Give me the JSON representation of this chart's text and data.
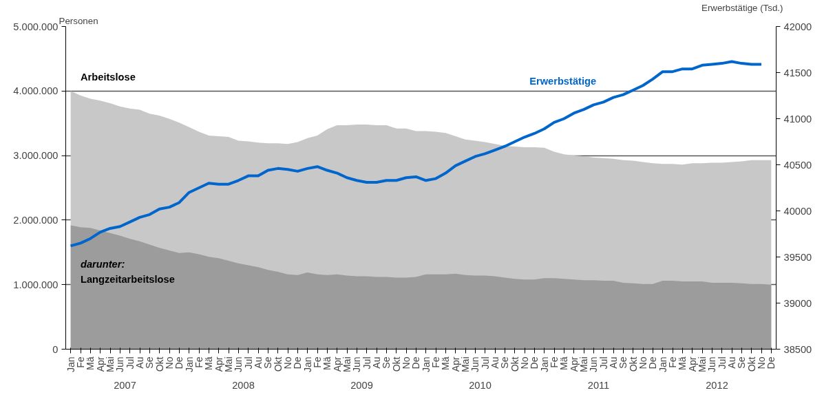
{
  "chart_data": {
    "type": "area",
    "categories": [
      "Jan",
      "Fe",
      "Mä",
      "Apr",
      "Mai",
      "Jun",
      "Jul",
      "Au",
      "Se",
      "Okt",
      "No",
      "De",
      "Jan",
      "Fe",
      "Mä",
      "Apr",
      "Mai",
      "Jun",
      "Jul",
      "Au",
      "Se",
      "Okt",
      "No",
      "De",
      "Jan",
      "Fe",
      "Mä",
      "Apr",
      "Mai",
      "Jun",
      "Jul",
      "Au",
      "Se",
      "Okt",
      "No",
      "De",
      "Jan",
      "Fe",
      "Mä",
      "Apr",
      "Mai",
      "Jun",
      "Jul",
      "Au",
      "Se",
      "Okt",
      "No",
      "De",
      "Jan",
      "Fe",
      "Mä",
      "Apr",
      "Mai",
      "Jun",
      "Jul",
      "Au",
      "Se",
      "Okt",
      "No",
      "De",
      "Jan",
      "Fe",
      "Mä",
      "Apr",
      "Mai",
      "Jun",
      "Jul",
      "Au",
      "Se",
      "Okt",
      "No",
      "De"
    ],
    "series": [
      {
        "name": "Arbeitslose",
        "color": "#c8c8c8",
        "values": [
          4000000,
          3930000,
          3880000,
          3850000,
          3810000,
          3760000,
          3730000,
          3710000,
          3650000,
          3620000,
          3570000,
          3510000,
          3440000,
          3370000,
          3310000,
          3300000,
          3290000,
          3230000,
          3220000,
          3200000,
          3190000,
          3190000,
          3180000,
          3210000,
          3270000,
          3310000,
          3410000,
          3470000,
          3470000,
          3480000,
          3480000,
          3470000,
          3470000,
          3420000,
          3420000,
          3380000,
          3380000,
          3370000,
          3350000,
          3300000,
          3250000,
          3230000,
          3210000,
          3180000,
          3150000,
          3140000,
          3130000,
          3130000,
          3120000,
          3060000,
          3020000,
          3000000,
          2990000,
          2970000,
          2960000,
          2950000,
          2930000,
          2920000,
          2900000,
          2880000,
          2870000,
          2870000,
          2860000,
          2880000,
          2880000,
          2890000,
          2890000,
          2900000,
          2910000,
          2930000,
          2930000,
          2930000
        ]
      },
      {
        "name": "Langzeitarbeitslose",
        "color": "#9c9c9c",
        "values": [
          1920000,
          1890000,
          1880000,
          1840000,
          1800000,
          1760000,
          1710000,
          1670000,
          1620000,
          1570000,
          1530000,
          1490000,
          1500000,
          1470000,
          1430000,
          1410000,
          1370000,
          1330000,
          1300000,
          1270000,
          1230000,
          1200000,
          1160000,
          1150000,
          1190000,
          1160000,
          1150000,
          1160000,
          1140000,
          1130000,
          1130000,
          1120000,
          1120000,
          1110000,
          1110000,
          1120000,
          1160000,
          1160000,
          1160000,
          1170000,
          1150000,
          1140000,
          1140000,
          1130000,
          1110000,
          1090000,
          1080000,
          1080000,
          1100000,
          1100000,
          1090000,
          1080000,
          1070000,
          1070000,
          1060000,
          1060000,
          1030000,
          1020000,
          1010000,
          1010000,
          1060000,
          1060000,
          1050000,
          1050000,
          1050000,
          1030000,
          1030000,
          1030000,
          1020000,
          1010000,
          1010000,
          1000000
        ]
      },
      {
        "name": "Erwerbstätige",
        "type": "line",
        "axis": "y2",
        "color": "#0066cc",
        "values": [
          39620,
          39650,
          39700,
          39770,
          39810,
          39830,
          39880,
          39930,
          39960,
          40020,
          40040,
          40090,
          40200,
          40250,
          40300,
          40290,
          40290,
          40330,
          40380,
          40380,
          40440,
          40460,
          40450,
          40430,
          40460,
          40480,
          40440,
          40410,
          40360,
          40330,
          40310,
          40310,
          40330,
          40330,
          40360,
          40370,
          40330,
          40350,
          40410,
          40490,
          40540,
          40590,
          40620,
          40660,
          40700,
          40750,
          40800,
          40840,
          40890,
          40960,
          41000,
          41060,
          41100,
          41150,
          41180,
          41230,
          41260,
          41310,
          41360,
          41430,
          41510,
          41510,
          41540,
          41540,
          41580,
          41590,
          41600,
          41620,
          41600,
          41590,
          41590,
          null
        ]
      }
    ],
    "ylabel": "Personen",
    "y2label": "Erwerbstätige (Tsd.)",
    "ylim": [
      0,
      5000000
    ],
    "yticks": [
      {
        "value": 0,
        "label": "0"
      },
      {
        "value": 1000000,
        "label": "1.000.000"
      },
      {
        "value": 2000000,
        "label": "2.000.000"
      },
      {
        "value": 3000000,
        "label": "3.000.000"
      },
      {
        "value": 4000000,
        "label": "4.000.000"
      },
      {
        "value": 5000000,
        "label": "5.000.000"
      }
    ],
    "y2lim": [
      38500,
      42000
    ],
    "y2ticks": [
      38500,
      39000,
      39500,
      40000,
      40500,
      41000,
      41500,
      42000
    ],
    "annotations": [
      "darunter:",
      "2007",
      "2008",
      "2009",
      "2010",
      "2011",
      "2012"
    ],
    "grid": "y",
    "legend": false
  }
}
